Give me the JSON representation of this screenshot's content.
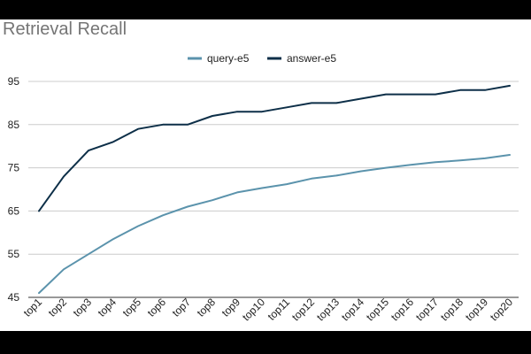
{
  "chart_data": {
    "type": "line",
    "title": "Retrieval Recall",
    "xlabel": "",
    "ylabel": "",
    "categories": [
      "top1",
      "top2",
      "top3",
      "top4",
      "top5",
      "top6",
      "top7",
      "top8",
      "top9",
      "top10",
      "top11",
      "top12",
      "top13",
      "top14",
      "top15",
      "top16",
      "top17",
      "top18",
      "top19",
      "top20"
    ],
    "ylim": [
      45,
      98
    ],
    "yticks": [
      45,
      55,
      65,
      75,
      85,
      95
    ],
    "grid": true,
    "legend_position": "top-center",
    "series": [
      {
        "name": "query-e5",
        "color": "#5b93ac",
        "values": [
          46,
          51.5,
          55,
          58.5,
          61.5,
          64,
          66,
          67.5,
          69.3,
          70.3,
          71.2,
          72.5,
          73.2,
          74.2,
          75,
          75.7,
          76.3,
          76.7,
          77.2,
          78
        ]
      },
      {
        "name": "answer-e5",
        "color": "#0d2f48",
        "values": [
          65,
          73,
          79,
          81,
          84,
          85,
          85,
          87,
          88,
          88,
          89,
          90,
          90,
          91,
          92,
          92,
          92,
          93,
          93,
          94
        ]
      }
    ]
  }
}
